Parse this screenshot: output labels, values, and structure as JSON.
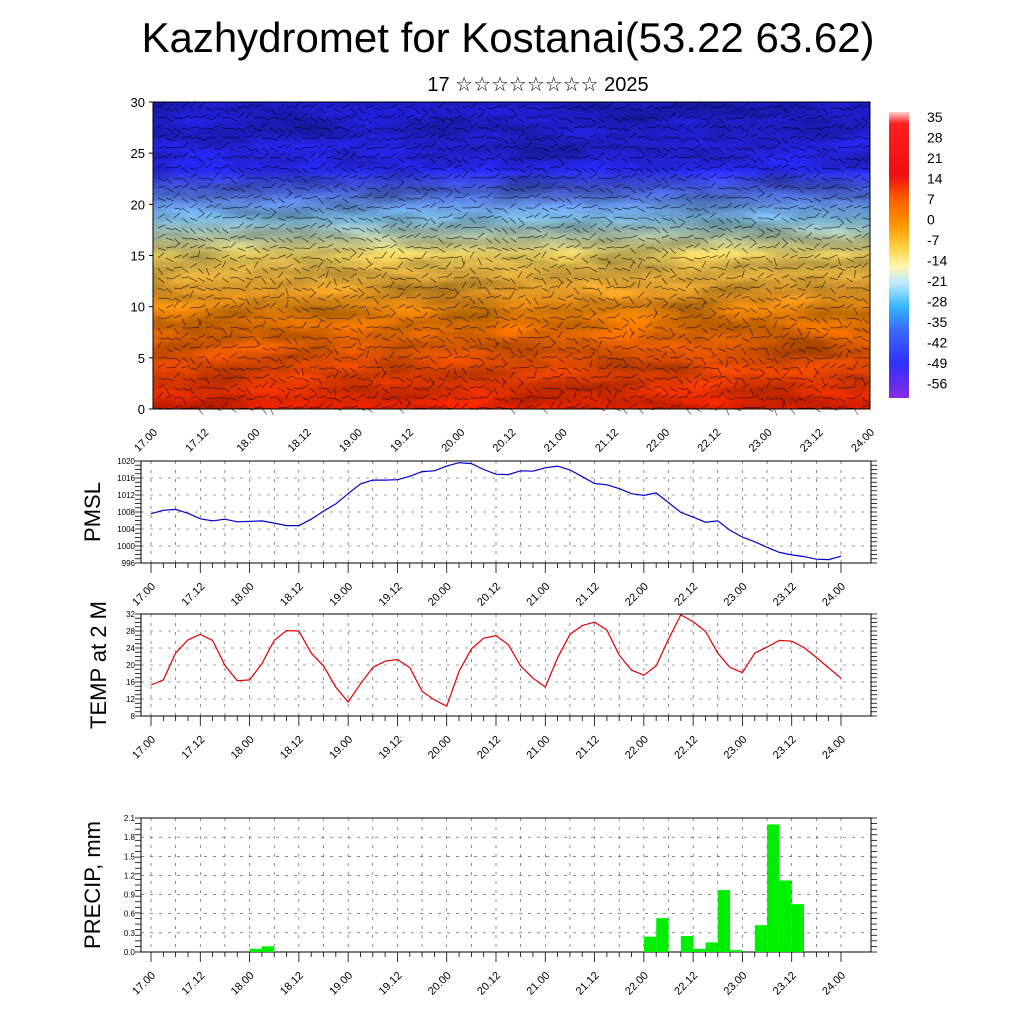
{
  "title": "Kazhydromet for Kostanai(53.22 63.62)",
  "subtitle": "17 ☆☆☆☆☆☆☆☆ 2025",
  "chart_data": [
    {
      "type": "heatmap",
      "ylim": [
        0,
        30
      ],
      "yticks": [
        "0",
        "5",
        "10",
        "15",
        "20",
        "25",
        "30"
      ],
      "xticks": [
        "17.00",
        "17.12",
        "18.00",
        "18.12",
        "19.00",
        "19.12",
        "20.00",
        "20.12",
        "21.00",
        "21.12",
        "22.00",
        "22.12",
        "23.00",
        "23.12",
        "24.00"
      ],
      "colorbar": [
        "35",
        "28",
        "21",
        "14",
        "7",
        "0",
        "-7",
        "-14",
        "-21",
        "-28",
        "-35",
        "-42",
        "-49",
        "-56"
      ],
      "colors": [
        "#ff2200",
        "#ff8800",
        "#ffe066",
        "#87cefa",
        "#2a2aff",
        "#2020e0"
      ]
    },
    {
      "type": "line",
      "ylabel": "PMSL",
      "ylim": [
        996,
        1020
      ],
      "yticks": [
        "996",
        "1000",
        "1004",
        "1008",
        "1012",
        "1016",
        "1020"
      ],
      "xticks": [
        "17.00",
        "17.12",
        "18.00",
        "18.12",
        "19.00",
        "19.12",
        "20.00",
        "20.12",
        "21.00",
        "21.12",
        "22.00",
        "22.12",
        "23.00",
        "23.12",
        "24.00"
      ],
      "x": [
        0,
        3,
        6,
        9,
        12,
        15,
        18,
        21,
        24,
        27,
        30,
        33,
        36,
        39,
        42,
        45,
        48,
        51,
        54,
        57,
        60,
        63,
        66,
        69,
        72,
        75,
        78,
        81,
        84,
        87,
        90,
        93,
        96,
        99,
        102,
        105,
        108,
        111,
        114,
        117,
        120,
        123,
        126,
        129,
        132,
        135,
        138,
        141,
        144,
        147,
        150,
        153,
        156,
        159,
        162,
        165,
        168
      ],
      "series": [
        {
          "name": "",
          "color": "#0000cc",
          "values": [
            1007.6,
            1008.4,
            1008.6,
            1007.7,
            1006.4,
            1005.9,
            1006.3,
            1005.7,
            1005.8,
            1005.9,
            1005.4,
            1004.8,
            1004.8,
            1006.3,
            1008.2,
            1009.9,
            1012.3,
            1014.6,
            1015.5,
            1015.5,
            1015.6,
            1016.4,
            1017.5,
            1017.7,
            1018.8,
            1019.6,
            1019.4,
            1018.0,
            1016.9,
            1016.8,
            1017.7,
            1017.6,
            1018.4,
            1018.8,
            1017.9,
            1016.3,
            1014.7,
            1014.4,
            1013.5,
            1012.3,
            1011.9,
            1012.5,
            1010.2,
            1007.9,
            1006.8,
            1005.6,
            1005.9,
            1003.7,
            1002.1,
            1001.0,
            999.7,
            998.5,
            997.9,
            997.5,
            996.9,
            996.8,
            997.6
          ]
        }
      ]
    },
    {
      "type": "line",
      "ylabel": "TEMP at 2 M",
      "ylim": [
        8,
        32
      ],
      "yticks": [
        "8",
        "12",
        "16",
        "20",
        "24",
        "28",
        "32"
      ],
      "xticks": [
        "17.00",
        "17.12",
        "18.00",
        "18.12",
        "19.00",
        "19.12",
        "20.00",
        "20.12",
        "21.00",
        "21.12",
        "22.00",
        "22.12",
        "23.00",
        "23.12",
        "24.00"
      ],
      "x": [
        0,
        3,
        6,
        9,
        12,
        15,
        18,
        21,
        24,
        27,
        30,
        33,
        36,
        39,
        42,
        45,
        48,
        51,
        54,
        57,
        60,
        63,
        66,
        69,
        72,
        75,
        78,
        81,
        84,
        87,
        90,
        93,
        96,
        99,
        102,
        105,
        108,
        111,
        114,
        117,
        120,
        123,
        126,
        129,
        132,
        135,
        138,
        141,
        144,
        147,
        150,
        153,
        156,
        159,
        162,
        165,
        168
      ],
      "series": [
        {
          "name": "",
          "color": "#dd0000",
          "values": [
            15.3,
            16.5,
            22.8,
            25.9,
            27.2,
            25.8,
            19.9,
            16.3,
            16.5,
            20.3,
            25.8,
            28.1,
            28.0,
            22.8,
            19.8,
            14.8,
            11.3,
            15.6,
            19.4,
            20.9,
            21.3,
            19.4,
            13.8,
            11.8,
            10.3,
            18.5,
            23.8,
            26.3,
            26.9,
            24.8,
            19.8,
            16.9,
            14.8,
            21.7,
            27.2,
            29.3,
            30.1,
            28.2,
            22.3,
            18.8,
            17.6,
            19.8,
            26.1,
            31.8,
            30.2,
            27.9,
            22.8,
            19.4,
            18.2,
            22.8,
            24.2,
            25.8,
            25.6,
            24.1,
            21.8,
            19.3,
            16.9
          ]
        }
      ]
    },
    {
      "type": "bar",
      "ylabel": "PRECIP, mm",
      "ylim": [
        0,
        2.1
      ],
      "yticks": [
        "0.0",
        "0.3",
        "0.6",
        "0.9",
        "1.2",
        "1.5",
        "1.8",
        "2.1"
      ],
      "xticks": [
        "17.00",
        "17.12",
        "18.00",
        "18.12",
        "19.00",
        "19.12",
        "20.00",
        "20.12",
        "21.00",
        "21.12",
        "22.00",
        "22.12",
        "23.00",
        "23.12",
        "24.00"
      ],
      "bar_width_hours": 3,
      "bars": [
        {
          "x": 24,
          "value": 0.05
        },
        {
          "x": 27,
          "value": 0.09
        },
        {
          "x": 120,
          "value": 0.24
        },
        {
          "x": 123,
          "value": 0.53
        },
        {
          "x": 129,
          "value": 0.25
        },
        {
          "x": 132,
          "value": 0.05
        },
        {
          "x": 135,
          "value": 0.15
        },
        {
          "x": 138,
          "value": 0.97
        },
        {
          "x": 141,
          "value": 0.03
        },
        {
          "x": 147,
          "value": 0.42
        },
        {
          "x": 150,
          "value": 2.0
        },
        {
          "x": 153,
          "value": 1.12
        },
        {
          "x": 156,
          "value": 0.75
        }
      ],
      "color": "#00ee00"
    }
  ]
}
